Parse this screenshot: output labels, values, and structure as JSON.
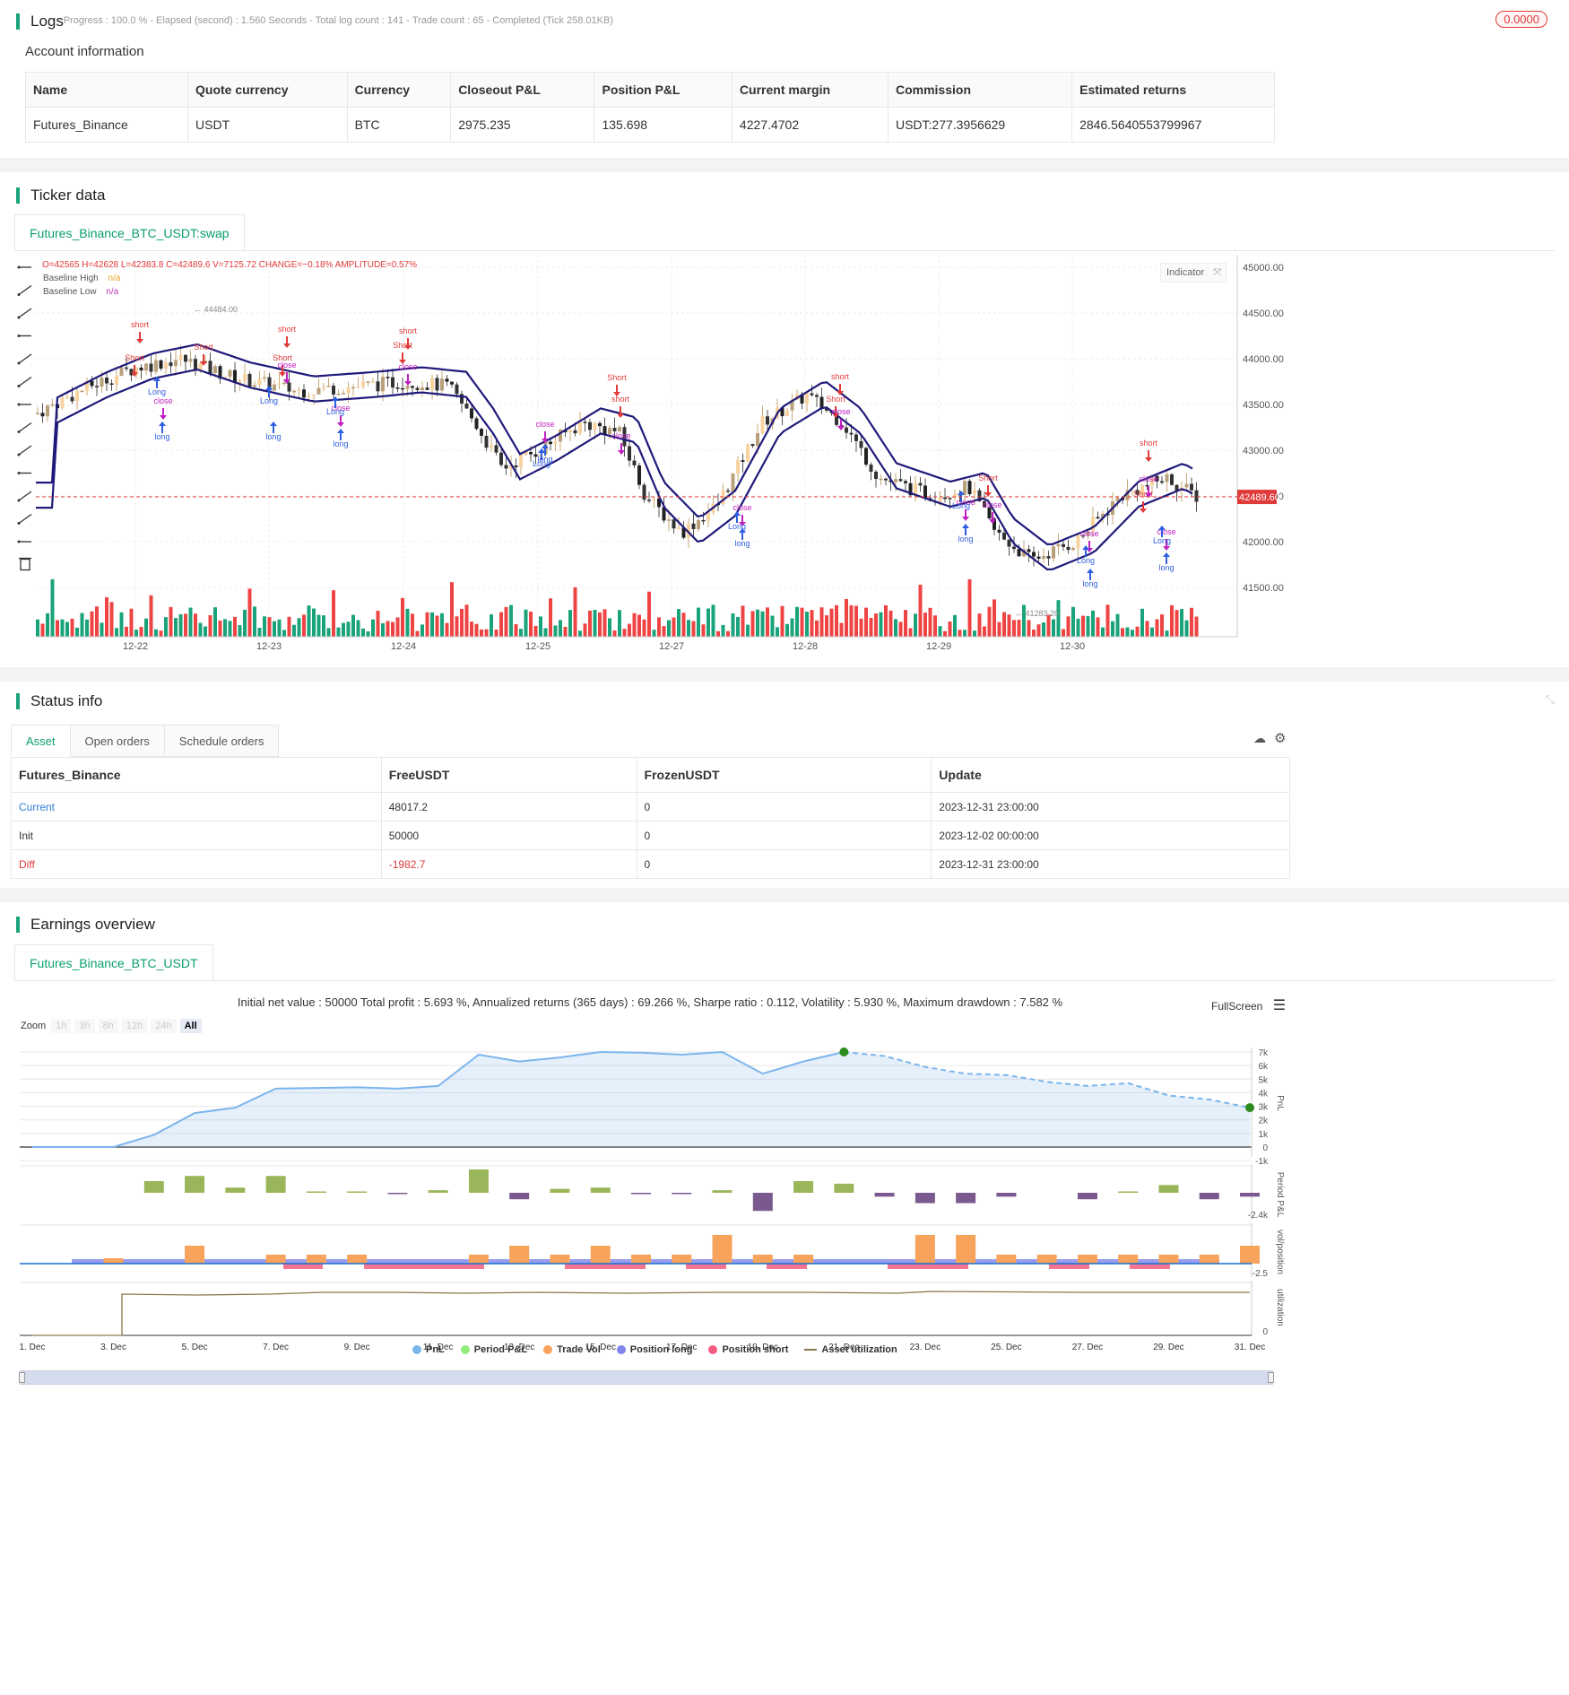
{
  "logs": {
    "title": "Logs",
    "status": "- Progress : 100.0 % - Elapsed (second) : 1.560 Seconds - Total log count : 141 - Trade count : 65 - Completed (Tick 258.01KB)",
    "badge": "0.0000"
  },
  "account": {
    "title": "Account information",
    "headers": [
      "Name",
      "Quote currency",
      "Currency",
      "Closeout P&L",
      "Position P&L",
      "Current margin",
      "Commission",
      "Estimated returns"
    ],
    "row": [
      "Futures_Binance",
      "USDT",
      "BTC",
      "2975.235",
      "135.698",
      "4227.4702",
      "USDT:277.3956629",
      "2846.5640553799967"
    ]
  },
  "ticker": {
    "title": "Ticker data",
    "tab": "Futures_Binance_BTC_USDT:swap",
    "ohlc": "O=42565 H=42628 L=42383.8 C=42489.6 V=7125.72 CHANGE=−0.18% AMPLITUDE=0.57%",
    "legend": [
      {
        "name": "Baseline High",
        "value": "n/a",
        "color": "#f0a020"
      },
      {
        "name": "Baseline Low",
        "value": "n/a",
        "color": "#c040c0"
      }
    ],
    "indicator_btn": "Indicator",
    "price_ticks": [
      "45000.00",
      "44500.00",
      "44000.00",
      "43500.00",
      "43000.00",
      "42500.00",
      "42000.00",
      "41500.00"
    ],
    "last_price": "42489.60",
    "high_label": "44484.00",
    "low_label": "41283.20",
    "date_ticks": [
      "12-22",
      "12-23",
      "12-24",
      "12-25",
      "12-27",
      "12-28",
      "12-29",
      "12-30"
    ],
    "markers": [
      {
        "t": "short",
        "c": "#e03a3a",
        "up": false,
        "x": 156,
        "y": 365
      },
      {
        "t": "Short",
        "c": "#e03a3a",
        "up": false,
        "x": 150,
        "y": 402
      },
      {
        "t": "close",
        "c": "#c020c0",
        "up": false,
        "x": 182,
        "y": 450
      },
      {
        "t": "long",
        "c": "#2f5ee0",
        "up": true,
        "x": 181,
        "y": 490
      },
      {
        "t": "Long",
        "c": "#2f5ee0",
        "up": true,
        "x": 175,
        "y": 440
      },
      {
        "t": "Short",
        "c": "#e03a3a",
        "up": false,
        "x": 227,
        "y": 390
      },
      {
        "t": "short",
        "c": "#e03a3a",
        "up": false,
        "x": 320,
        "y": 370
      },
      {
        "t": "Short",
        "c": "#e03a3a",
        "up": false,
        "x": 315,
        "y": 402
      },
      {
        "t": "close",
        "c": "#c020c0",
        "up": false,
        "x": 320,
        "y": 410
      },
      {
        "t": "long",
        "c": "#2f5ee0",
        "up": true,
        "x": 305,
        "y": 490
      },
      {
        "t": "Long",
        "c": "#2f5ee0",
        "up": true,
        "x": 300,
        "y": 450
      },
      {
        "t": "close",
        "c": "#c020c0",
        "up": false,
        "x": 380,
        "y": 458
      },
      {
        "t": "long",
        "c": "#2f5ee0",
        "up": true,
        "x": 380,
        "y": 498
      },
      {
        "t": "Long",
        "c": "#2f5ee0",
        "up": true,
        "x": 374,
        "y": 462
      },
      {
        "t": "short",
        "c": "#e03a3a",
        "up": false,
        "x": 455,
        "y": 372
      },
      {
        "t": "Short",
        "c": "#e03a3a",
        "up": false,
        "x": 449,
        "y": 388
      },
      {
        "t": "close",
        "c": "#c020c0",
        "up": false,
        "x": 455,
        "y": 412
      },
      {
        "t": "close",
        "c": "#c020c0",
        "up": false,
        "x": 608,
        "y": 476
      },
      {
        "t": "Long",
        "c": "#2f5ee0",
        "up": true,
        "x": 604,
        "y": 520
      },
      {
        "t": "long",
        "c": "#2f5ee0",
        "up": true,
        "x": 608,
        "y": 515
      },
      {
        "t": "Short",
        "c": "#e03a3a",
        "up": false,
        "x": 688,
        "y": 424
      },
      {
        "t": "short",
        "c": "#e03a3a",
        "up": false,
        "x": 692,
        "y": 448
      },
      {
        "t": "close",
        "c": "#c020c0",
        "up": false,
        "x": 693,
        "y": 489
      },
      {
        "t": "close",
        "c": "#c020c0",
        "up": false,
        "x": 828,
        "y": 569
      },
      {
        "t": "Long",
        "c": "#2f5ee0",
        "up": true,
        "x": 822,
        "y": 590
      },
      {
        "t": "long",
        "c": "#2f5ee0",
        "up": true,
        "x": 828,
        "y": 609
      },
      {
        "t": "short",
        "c": "#e03a3a",
        "up": false,
        "x": 937,
        "y": 423
      },
      {
        "t": "Short",
        "c": "#e03a3a",
        "up": false,
        "x": 932,
        "y": 448
      },
      {
        "t": "close",
        "c": "#c020c0",
        "up": false,
        "x": 938,
        "y": 462
      },
      {
        "t": "close",
        "c": "#c020c0",
        "up": false,
        "x": 1077,
        "y": 563
      },
      {
        "t": "Long",
        "c": "#2f5ee0",
        "up": true,
        "x": 1072,
        "y": 567
      },
      {
        "t": "long",
        "c": "#2f5ee0",
        "up": true,
        "x": 1077,
        "y": 604
      },
      {
        "t": "Short",
        "c": "#e03a3a",
        "up": false,
        "x": 1102,
        "y": 536
      },
      {
        "t": "close",
        "c": "#c020c0",
        "up": false,
        "x": 1107,
        "y": 566
      },
      {
        "t": "close",
        "c": "#c020c0",
        "up": false,
        "x": 1215,
        "y": 598
      },
      {
        "t": "Long",
        "c": "#2f5ee0",
        "up": true,
        "x": 1211,
        "y": 628
      },
      {
        "t": "long",
        "c": "#2f5ee0",
        "up": true,
        "x": 1216,
        "y": 654
      },
      {
        "t": "short",
        "c": "#e03a3a",
        "up": false,
        "x": 1281,
        "y": 497
      },
      {
        "t": "Short",
        "c": "#e03a3a",
        "up": false,
        "x": 1275,
        "y": 554
      },
      {
        "t": "close",
        "c": "#c020c0",
        "up": false,
        "x": 1281,
        "y": 537
      },
      {
        "t": "close",
        "c": "#c020c0",
        "up": false,
        "x": 1301,
        "y": 596
      },
      {
        "t": "Long",
        "c": "#2f5ee0",
        "up": true,
        "x": 1296,
        "y": 606
      },
      {
        "t": "long",
        "c": "#2f5ee0",
        "up": true,
        "x": 1301,
        "y": 636
      }
    ]
  },
  "status": {
    "title": "Status info",
    "tabs": [
      "Asset",
      "Open orders",
      "Schedule orders"
    ],
    "headers": [
      "Futures_Binance",
      "FreeUSDT",
      "FrozenUSDT",
      "Update"
    ],
    "rows": [
      [
        "Current",
        "48017.2",
        "0",
        "2023-12-31 23:00:00"
      ],
      [
        "Init",
        "50000",
        "0",
        "2023-12-02 00:00:00"
      ],
      [
        "Diff",
        "-1982.7",
        "0",
        "2023-12-31 23:00:00"
      ]
    ]
  },
  "earnings": {
    "title": "Earnings overview",
    "tab": "Futures_Binance_BTC_USDT",
    "summary": "Initial net value : 50000 Total profit : 5.693 %, Annualized returns (365 days) : 69.266 %, Sharpe ratio : 0.112, Volatility : 5.930 %, Maximum drawdown : 7.582 %",
    "fullscreen": "FullScreen",
    "zoom_label": "Zoom",
    "zoom_options": [
      "1h",
      "3h",
      "8h",
      "12h",
      "24h",
      "All"
    ],
    "pnl_ticks": [
      "7k",
      "6k",
      "5k",
      "4k",
      "3k",
      "2k",
      "1k",
      "0",
      "-1k"
    ],
    "period_tick": "-2.4k",
    "vol_tick": "-2.5",
    "util_tick": "0",
    "axis_titles": [
      "PnL",
      "Period P&L",
      "vol/position",
      "utilization"
    ],
    "date_ticks": [
      "1. Dec",
      "3. Dec",
      "5. Dec",
      "7. Dec",
      "9. Dec",
      "11. Dec",
      "13. Dec",
      "15. Dec",
      "17. Dec",
      "19. Dec",
      "21. Dec",
      "23. Dec",
      "25. Dec",
      "27. Dec",
      "29. Dec",
      "31. Dec"
    ],
    "legend": [
      {
        "name": "PnL",
        "color": "#7cb5ec"
      },
      {
        "name": "Period P&L",
        "color": "#90ed7d"
      },
      {
        "name": "Trade Vol",
        "color": "#f7a35c"
      },
      {
        "name": "Position long",
        "color": "#8085e9"
      },
      {
        "name": "Position short",
        "color": "#f15c80"
      },
      {
        "name": "Asset utilization",
        "color": "#8a7a4a"
      }
    ],
    "chart_data": {
      "type": "area",
      "x": [
        "1. Dec",
        "2. Dec",
        "3. Dec",
        "4. Dec",
        "5. Dec",
        "6. Dec",
        "7. Dec",
        "8. Dec",
        "9. Dec",
        "10. Dec",
        "11. Dec",
        "12. Dec",
        "13. Dec",
        "14. Dec",
        "15. Dec",
        "16. Dec",
        "17. Dec",
        "18. Dec",
        "19. Dec",
        "20. Dec",
        "21. Dec",
        "22. Dec",
        "23. Dec",
        "24. Dec",
        "25. Dec",
        "26. Dec",
        "27. Dec",
        "28. Dec",
        "29. Dec",
        "30. Dec",
        "31. Dec"
      ],
      "series": [
        {
          "name": "PnL",
          "values": [
            0,
            0,
            0,
            900,
            2500,
            2900,
            4300,
            4350,
            4400,
            4300,
            4500,
            6800,
            6300,
            6600,
            7000,
            6950,
            6800,
            7000,
            5400,
            6300,
            7000,
            6700,
            5900,
            5400,
            5300,
            4800,
            4500,
            4700,
            3800,
            3500,
            2900
          ]
        },
        {
          "name": "Period P&L",
          "values": [
            0,
            0,
            0,
            900,
            1300,
            400,
            1300,
            50,
            50,
            -100,
            200,
            1800,
            -500,
            300,
            400,
            -50,
            -80,
            200,
            -1400,
            900,
            700,
            -300,
            -800,
            -800,
            -300,
            0,
            -500,
            50,
            600,
            -500,
            -300
          ]
        }
      ],
      "ylim": [
        -1000,
        7000
      ]
    }
  }
}
